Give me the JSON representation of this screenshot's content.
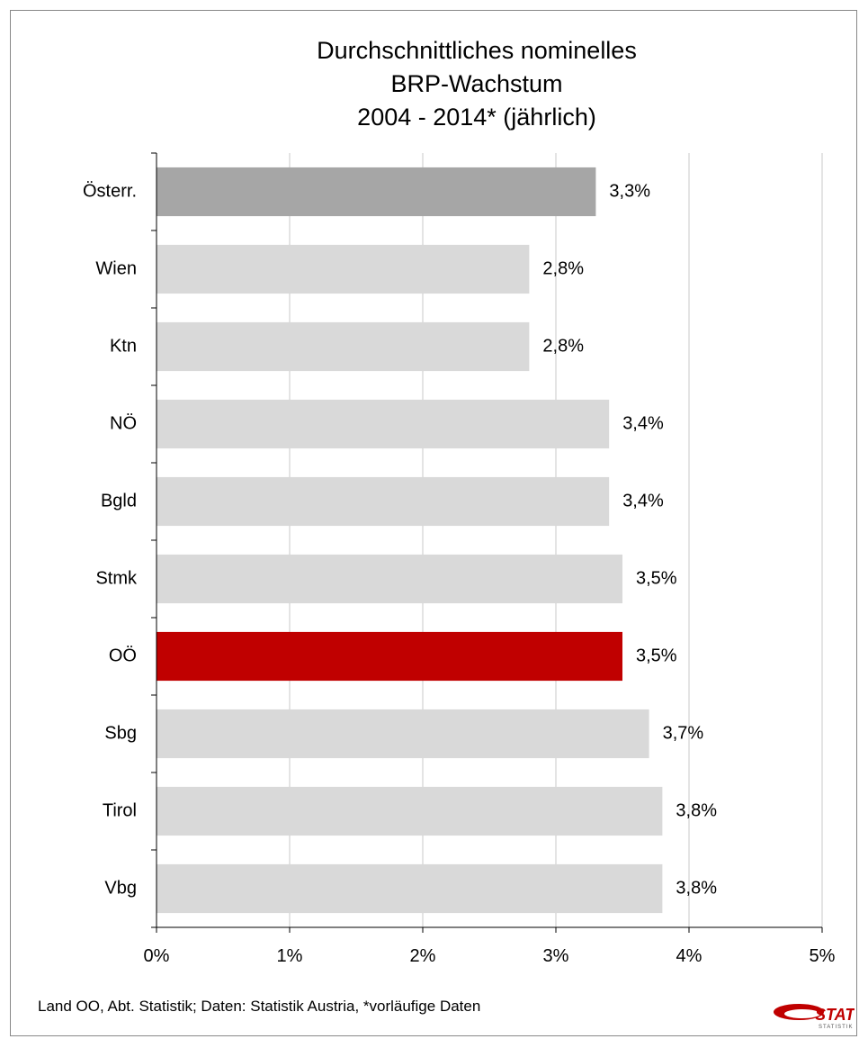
{
  "title_lines": [
    "Durchschnittliches nominelles",
    "BRP-Wachstum",
    "2004 - 2014* (jährlich)"
  ],
  "footer": "Land OO, Abt. Statistik; Daten: Statistik Austria, *vorläufige Daten",
  "logo": {
    "text": "STAT",
    "subtext": "STATISTIK OÖ"
  },
  "colors": {
    "default_bar": "#d9d9d9",
    "austria_bar": "#a6a6a6",
    "highlight_bar": "#c00000"
  },
  "chart_data": {
    "type": "bar",
    "orientation": "horizontal",
    "title": "Durchschnittliches nominelles BRP-Wachstum 2004 - 2014* (jährlich)",
    "categories": [
      "Österr.",
      "Wien",
      "Ktn",
      "NÖ",
      "Bgld",
      "Stmk",
      "OÖ",
      "Sbg",
      "Tirol",
      "Vbg"
    ],
    "values": [
      3.3,
      2.8,
      2.8,
      3.4,
      3.4,
      3.5,
      3.5,
      3.7,
      3.8,
      3.8
    ],
    "value_labels": [
      "3,3%",
      "2,8%",
      "2,8%",
      "3,4%",
      "3,4%",
      "3,5%",
      "3,5%",
      "3,7%",
      "3,8%",
      "3,8%"
    ],
    "bar_colors": [
      "#a6a6a6",
      "#d9d9d9",
      "#d9d9d9",
      "#d9d9d9",
      "#d9d9d9",
      "#d9d9d9",
      "#c00000",
      "#d9d9d9",
      "#d9d9d9",
      "#d9d9d9"
    ],
    "xlim": [
      0,
      5
    ],
    "xticks": [
      0,
      1,
      2,
      3,
      4,
      5
    ],
    "xtick_labels": [
      "0%",
      "1%",
      "2%",
      "3%",
      "4%",
      "5%"
    ],
    "grid": "vertical",
    "legend": "none"
  }
}
